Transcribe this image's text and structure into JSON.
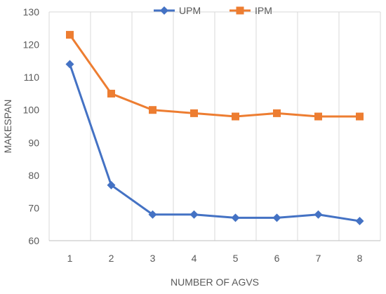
{
  "chart_data": {
    "type": "line",
    "title": "",
    "xlabel": "NUMBER OF AGVS",
    "ylabel": "MAKESPAN",
    "x": [
      1,
      2,
      3,
      4,
      5,
      6,
      7,
      8
    ],
    "ylim": [
      60,
      130
    ],
    "yticks": [
      60,
      70,
      80,
      90,
      100,
      110,
      120,
      130
    ],
    "grid": "vertical",
    "legend_position": "top",
    "series": [
      {
        "name": "UPM",
        "color": "#4472C4",
        "marker": "diamond",
        "values": [
          114,
          77,
          68,
          68,
          67,
          67,
          68,
          66
        ]
      },
      {
        "name": "IPM",
        "color": "#ED7D31",
        "marker": "square",
        "values": [
          123,
          105,
          100,
          99,
          98,
          99,
          98,
          98
        ]
      }
    ]
  }
}
